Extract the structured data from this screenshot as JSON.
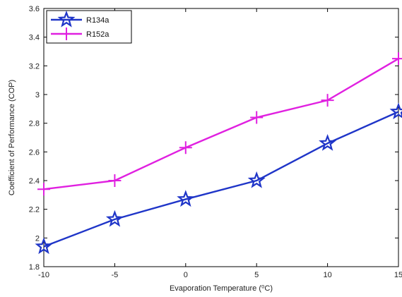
{
  "chart_data": {
    "type": "line",
    "title": "",
    "xlabel": "Evaporation Temperature (⁰C)",
    "ylabel": "Coefficient of Performance (COP)",
    "x": [
      -10,
      -5,
      0,
      5,
      10,
      15
    ],
    "xlim": [
      -10,
      15
    ],
    "ylim": [
      1.8,
      3.6
    ],
    "xticks": [
      "-10",
      "-5",
      "0",
      "5",
      "10",
      "15"
    ],
    "yticks": [
      "1.8",
      "2",
      "2.2",
      "2.4",
      "2.6",
      "2.8",
      "3",
      "3.2",
      "3.4",
      "3.6"
    ],
    "grid": false,
    "legend_position": "top-left",
    "series": [
      {
        "name": "R134a",
        "color": "#1f35c8",
        "marker": "star",
        "values": [
          1.94,
          2.13,
          2.27,
          2.4,
          2.66,
          2.88
        ]
      },
      {
        "name": "R152a",
        "color": "#e020e0",
        "marker": "plus",
        "values": [
          2.34,
          2.4,
          2.63,
          2.84,
          2.96,
          3.25
        ]
      }
    ]
  }
}
